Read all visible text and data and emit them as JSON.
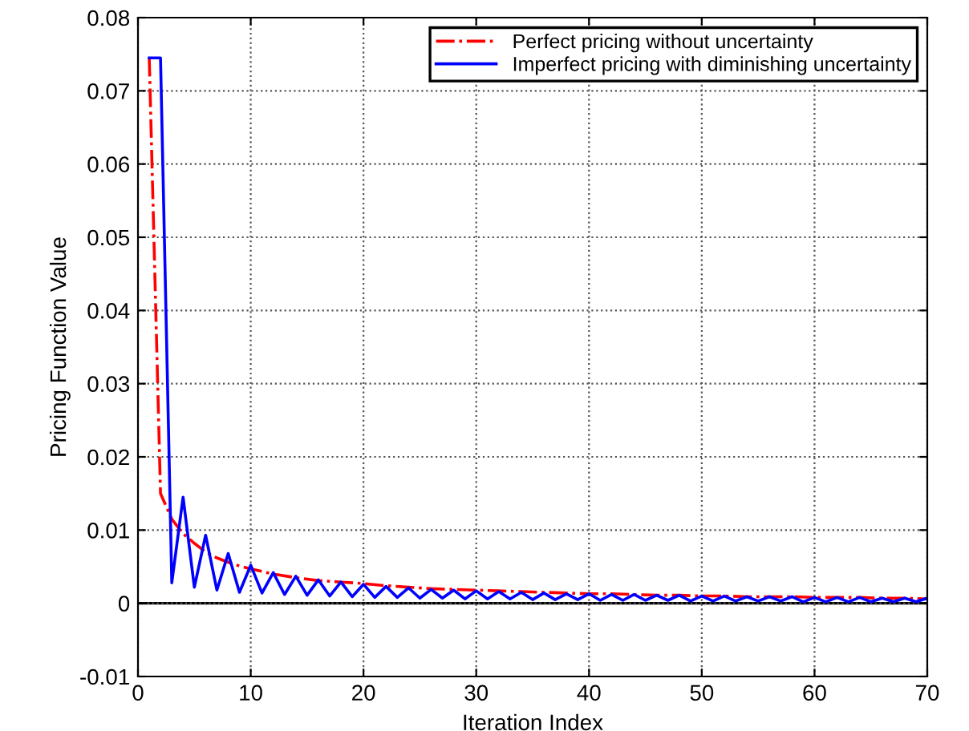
{
  "chart_data": {
    "type": "line",
    "xlabel": "Iteration Index",
    "ylabel": "Pricing Function Value",
    "xlim": [
      0,
      70
    ],
    "xticks": [
      0,
      10,
      20,
      30,
      40,
      50,
      60,
      70
    ],
    "ylim": [
      -0.01,
      0.08
    ],
    "yticks": [
      -0.01,
      0,
      0.01,
      0.02,
      0.03,
      0.04,
      0.05,
      0.06,
      0.07,
      0.08
    ],
    "grid": true,
    "legend": "top right",
    "marker": "none",
    "ref_lines": [
      {
        "axis": "y",
        "value": 0,
        "color": "#000000",
        "line_style": "solid"
      }
    ],
    "series": [
      {
        "name": "Perfect pricing without uncertainty",
        "color": "#ff0000",
        "line_style": "dashdot",
        "x": [
          1,
          2,
          3,
          4,
          5,
          6,
          7,
          8,
          9,
          10,
          12,
          14,
          16,
          18,
          20,
          22,
          24,
          26,
          28,
          30,
          32,
          34,
          36,
          38,
          40,
          42,
          44,
          46,
          48,
          50,
          52,
          54,
          56,
          58,
          60,
          62,
          64,
          66,
          68,
          70
        ],
        "values": [
          0.0745,
          0.015,
          0.0115,
          0.0095,
          0.0082,
          0.007,
          0.0062,
          0.0056,
          0.0051,
          0.0047,
          0.004,
          0.0035,
          0.0031,
          0.0029,
          0.0027,
          0.0024,
          0.0022,
          0.002,
          0.0019,
          0.0018,
          0.0017,
          0.0016,
          0.0015,
          0.0014,
          0.0013,
          0.0013,
          0.0012,
          0.0011,
          0.0011,
          0.001,
          0.001,
          0.0009,
          0.0009,
          0.0009,
          0.0008,
          0.0008,
          0.0008,
          0.0007,
          0.0007,
          0.0006
        ]
      },
      {
        "name": "Imperfect pricing with diminishing uncertainty",
        "color": "#0000ff",
        "line_style": "solid",
        "x": [
          1,
          2,
          3,
          4,
          5,
          6,
          7,
          8,
          9,
          10,
          11,
          12,
          13,
          14,
          15,
          16,
          17,
          18,
          19,
          20,
          21,
          22,
          23,
          24,
          25,
          26,
          27,
          28,
          29,
          30,
          31,
          32,
          33,
          34,
          35,
          36,
          37,
          38,
          39,
          40,
          41,
          42,
          43,
          44,
          45,
          46,
          47,
          48,
          49,
          50,
          51,
          52,
          53,
          54,
          55,
          56,
          57,
          58,
          59,
          60,
          61,
          62,
          63,
          64,
          65,
          66,
          67,
          68,
          69,
          70
        ],
        "values": [
          0.0745,
          0.0745,
          0.0028,
          0.0145,
          0.0022,
          0.0093,
          0.0018,
          0.0068,
          0.0015,
          0.0052,
          0.0014,
          0.0042,
          0.0012,
          0.0037,
          0.0011,
          0.0032,
          0.001,
          0.0029,
          0.0009,
          0.0026,
          0.0008,
          0.0023,
          0.0008,
          0.0021,
          0.0007,
          0.0019,
          0.0007,
          0.0018,
          0.0006,
          0.0017,
          0.0006,
          0.0016,
          0.0006,
          0.0015,
          0.0005,
          0.0014,
          0.0005,
          0.0013,
          0.0005,
          0.0013,
          0.0004,
          0.0012,
          0.0004,
          0.0012,
          0.0004,
          0.0011,
          0.0004,
          0.0011,
          0.0003,
          0.001,
          0.0003,
          0.001,
          0.0003,
          0.0009,
          0.0003,
          0.0009,
          0.0003,
          0.0009,
          0.0002,
          0.0008,
          0.0002,
          0.0008,
          0.0002,
          0.0008,
          0.0002,
          0.0007,
          0.0002,
          0.0007,
          0.0002,
          0.0007
        ]
      }
    ]
  }
}
